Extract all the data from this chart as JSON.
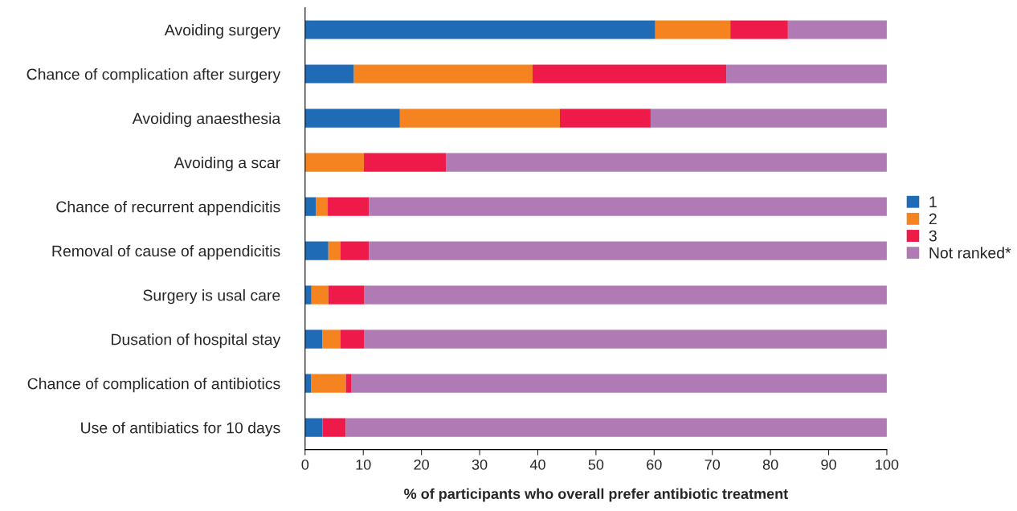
{
  "chart_data": {
    "type": "bar",
    "orientation": "horizontal",
    "stacked": true,
    "xlabel": "% of participants who overall prefer antibiotic treatment",
    "categories": [
      "Avoiding surgery",
      "Chance of complication after surgery",
      "Avoiding anaesthesia",
      "Avoiding a scar",
      "Chance of recurrent appendicitis",
      "Removal of cause of appendicitis",
      "Surgery is usal care",
      "Dusation of hospital stay",
      "Chance of complication of antibiotics",
      "Use of antibiatics for 10 days"
    ],
    "series": [
      {
        "name": "1",
        "color": "#1f6bb5",
        "values": [
          60.2,
          8.4,
          16.3,
          0,
          1.9,
          4.0,
          1.1,
          3.0,
          1.0,
          3.0
        ]
      },
      {
        "name": "2",
        "color": "#f58420",
        "values": [
          12.9,
          30.7,
          27.5,
          10.1,
          2.0,
          2.1,
          2.9,
          3.1,
          6.0,
          0
        ]
      },
      {
        "name": "3",
        "color": "#ee1b4a",
        "values": [
          9.9,
          33.3,
          15.6,
          14.1,
          7.1,
          4.9,
          6.2,
          4.1,
          1.0,
          4.0
        ]
      },
      {
        "name": "Not ranked*",
        "color": "#b07ab5",
        "values": [
          17.0,
          27.6,
          40.6,
          75.8,
          89.0,
          89.0,
          89.8,
          89.8,
          92.0,
          93.0
        ]
      }
    ],
    "xlim": [
      0,
      100
    ],
    "xticks": [
      0,
      10,
      20,
      30,
      40,
      50,
      60,
      70,
      80,
      90,
      100
    ],
    "legend": "right",
    "grid": false
  }
}
